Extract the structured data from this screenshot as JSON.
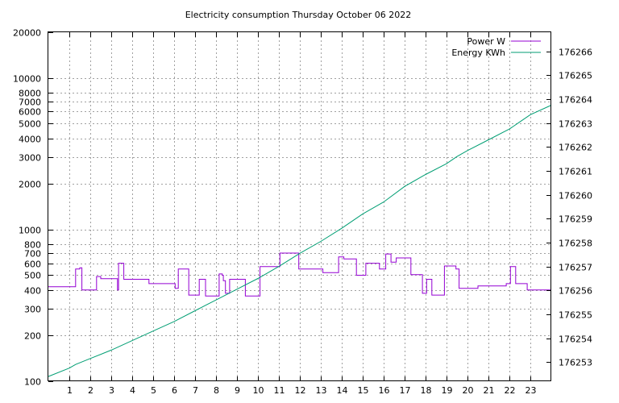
{
  "chart_data": {
    "type": "line",
    "title": "Electricity consumption Thursday October 06 2022",
    "x": {
      "min": 0,
      "max": 24,
      "ticks": [
        1,
        2,
        3,
        4,
        5,
        6,
        7,
        8,
        9,
        10,
        11,
        12,
        13,
        14,
        15,
        16,
        17,
        18,
        19,
        20,
        21,
        22,
        23
      ]
    },
    "y_left": {
      "scale": "log",
      "min": 100,
      "max": 20000,
      "ticks": [
        100,
        200,
        300,
        400,
        500,
        600,
        700,
        800,
        1000,
        2000,
        3000,
        4000,
        5000,
        6000,
        7000,
        8000,
        10000,
        20000
      ]
    },
    "y_right": {
      "min": 176252.2,
      "max": 176266.8,
      "ticks": [
        176253,
        176254,
        176255,
        176256,
        176257,
        176258,
        176259,
        176260,
        176261,
        176262,
        176263,
        176264,
        176265,
        176266
      ]
    },
    "grid": true,
    "legend_position": "top-right",
    "series": [
      {
        "name": "Power W",
        "axis": "left",
        "color": "#9400d3",
        "step": true,
        "points": [
          [
            0,
            420
          ],
          [
            1.2,
            420
          ],
          [
            1.3,
            550
          ],
          [
            1.5,
            560
          ],
          [
            1.6,
            400
          ],
          [
            2.2,
            400
          ],
          [
            2.3,
            490
          ],
          [
            2.5,
            475
          ],
          [
            3.3,
            475
          ],
          [
            3.3,
            400
          ],
          [
            3.35,
            600
          ],
          [
            3.55,
            600
          ],
          [
            3.6,
            470
          ],
          [
            4.8,
            470
          ],
          [
            4.8,
            440
          ],
          [
            6,
            440
          ],
          [
            6.05,
            410
          ],
          [
            6.15,
            410
          ],
          [
            6.2,
            550
          ],
          [
            6.7,
            550
          ],
          [
            6.7,
            370
          ],
          [
            7.1,
            370
          ],
          [
            7.2,
            470
          ],
          [
            7.5,
            470
          ],
          [
            7.5,
            365
          ],
          [
            8.1,
            365
          ],
          [
            8.15,
            510
          ],
          [
            8.3,
            500
          ],
          [
            8.35,
            460
          ],
          [
            8.45,
            380
          ],
          [
            8.6,
            380
          ],
          [
            8.65,
            470
          ],
          [
            9.3,
            470
          ],
          [
            9.4,
            365
          ],
          [
            10,
            365
          ],
          [
            10.1,
            570
          ],
          [
            11,
            570
          ],
          [
            11.05,
            700
          ],
          [
            11.9,
            700
          ],
          [
            11.95,
            550
          ],
          [
            13.1,
            550
          ],
          [
            13.1,
            520
          ],
          [
            13.8,
            520
          ],
          [
            13.85,
            660
          ],
          [
            14.05,
            660
          ],
          [
            14.1,
            640
          ],
          [
            14.7,
            640
          ],
          [
            14.7,
            500
          ],
          [
            15.1,
            500
          ],
          [
            15.15,
            600
          ],
          [
            15.8,
            600
          ],
          [
            15.8,
            550
          ],
          [
            16.05,
            550
          ],
          [
            16.1,
            690
          ],
          [
            16.3,
            690
          ],
          [
            16.35,
            610
          ],
          [
            16.55,
            610
          ],
          [
            16.6,
            650
          ],
          [
            17.3,
            650
          ],
          [
            17.3,
            505
          ],
          [
            17.8,
            505
          ],
          [
            17.85,
            380
          ],
          [
            18,
            380
          ],
          [
            18.05,
            470
          ],
          [
            18.3,
            470
          ],
          [
            18.3,
            370
          ],
          [
            18.85,
            370
          ],
          [
            18.9,
            575
          ],
          [
            19.4,
            575
          ],
          [
            19.45,
            550
          ],
          [
            19.55,
            550
          ],
          [
            19.6,
            410
          ],
          [
            20.5,
            410
          ],
          [
            20.5,
            425
          ],
          [
            21.8,
            425
          ],
          [
            21.85,
            440
          ],
          [
            22,
            440
          ],
          [
            22.05,
            570
          ],
          [
            22.3,
            570
          ],
          [
            22.3,
            440
          ],
          [
            22.8,
            440
          ],
          [
            22.85,
            400
          ],
          [
            24,
            400
          ]
        ]
      },
      {
        "name": "Energy KWh",
        "axis": "right",
        "color": "#009e73",
        "step": false,
        "points": [
          [
            0,
            176252.4
          ],
          [
            1,
            176252.75
          ],
          [
            1.3,
            176252.9
          ],
          [
            2,
            176253.15
          ],
          [
            3,
            176253.5
          ],
          [
            4,
            176253.9
          ],
          [
            5,
            176254.3
          ],
          [
            6,
            176254.7
          ],
          [
            7,
            176255.15
          ],
          [
            8,
            176255.6
          ],
          [
            9,
            176256.05
          ],
          [
            10,
            176256.5
          ],
          [
            11,
            176257
          ],
          [
            12,
            176257.55
          ],
          [
            13,
            176258.05
          ],
          [
            14,
            176258.6
          ],
          [
            14.5,
            176258.9
          ],
          [
            15,
            176259.2
          ],
          [
            16,
            176259.7
          ],
          [
            17,
            176260.35
          ],
          [
            18,
            176260.85
          ],
          [
            19,
            176261.3
          ],
          [
            19.5,
            176261.6
          ],
          [
            20,
            176261.85
          ],
          [
            21,
            176262.3
          ],
          [
            22,
            176262.75
          ],
          [
            22.5,
            176263.05
          ],
          [
            23,
            176263.35
          ],
          [
            24,
            176263.75
          ]
        ]
      }
    ]
  }
}
